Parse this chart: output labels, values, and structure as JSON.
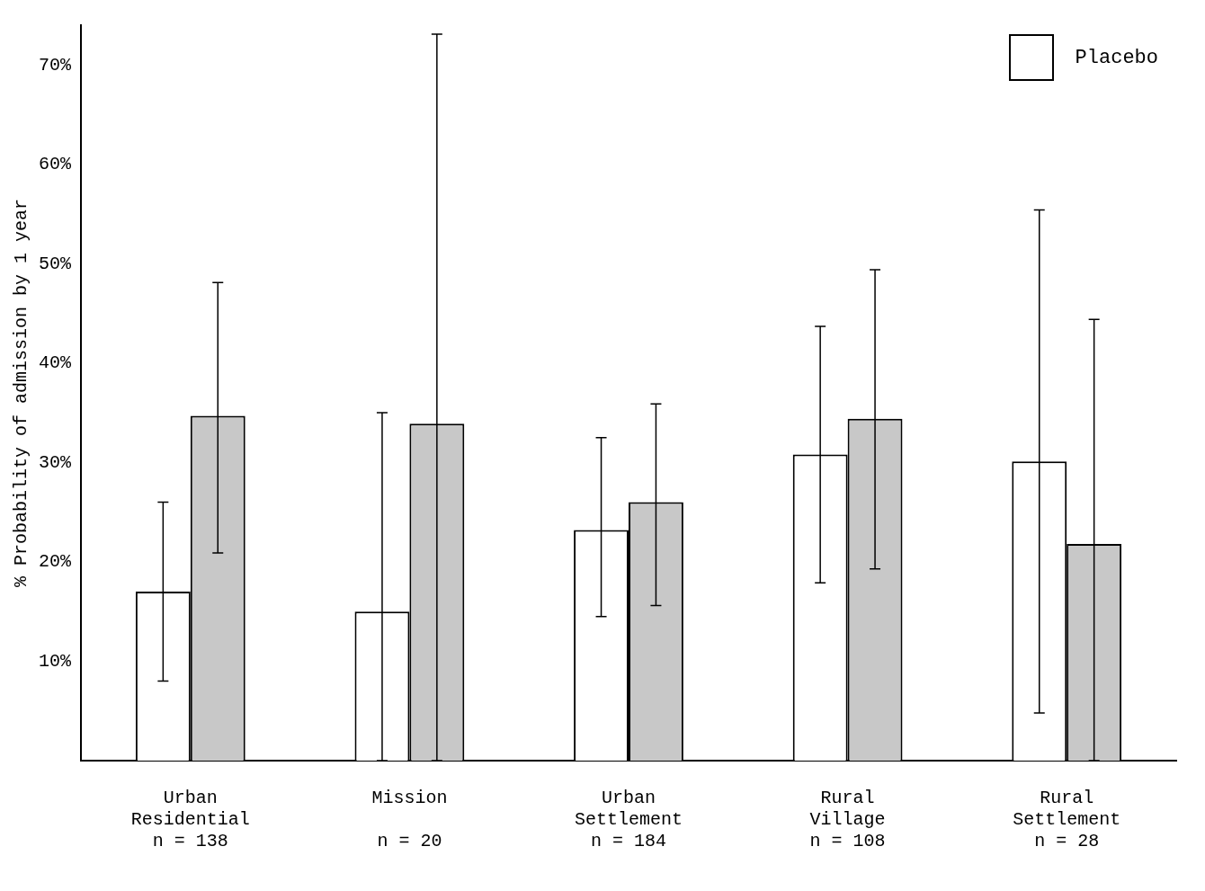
{
  "chart_data": {
    "type": "bar",
    "ylabel": "% Probability of admission by 1 year",
    "categories": [
      "Urban\nResidential\nn = 138",
      "Mission\n\nn = 20",
      "Urban\nSettlement\nn = 184",
      "Rural\nVillage\nn = 108",
      "Rural\nSettlement\nn = 28"
    ],
    "series": [
      {
        "name": "Placebo",
        "color": "#ffffff",
        "values": [
          17,
          15,
          23.2,
          30.8,
          30.1
        ],
        "errors": [
          [
            8,
            26
          ],
          [
            0,
            35
          ],
          [
            14.5,
            32.5
          ],
          [
            17.9,
            43.7
          ],
          [
            4.8,
            55.4
          ]
        ]
      },
      {
        "color": "#c8c8c8",
        "values": [
          34.7,
          33.9,
          26,
          34.4,
          21.8
        ],
        "errors": [
          [
            20.9,
            48.1
          ],
          [
            0,
            73.1
          ],
          [
            15.6,
            35.9
          ],
          [
            19.3,
            49.4
          ],
          [
            0,
            44.4
          ]
        ]
      }
    ],
    "ylim": [
      0,
      74
    ],
    "yticks": [
      {
        "value": 10,
        "label": "10%"
      },
      {
        "value": 20,
        "label": "20%"
      },
      {
        "value": 30,
        "label": "30%"
      },
      {
        "value": 40,
        "label": "40%"
      },
      {
        "value": 50,
        "label": "50%"
      },
      {
        "value": 60,
        "label": "60%"
      },
      {
        "value": 70,
        "label": "70%"
      }
    ],
    "grid": false,
    "legend": "top right"
  }
}
